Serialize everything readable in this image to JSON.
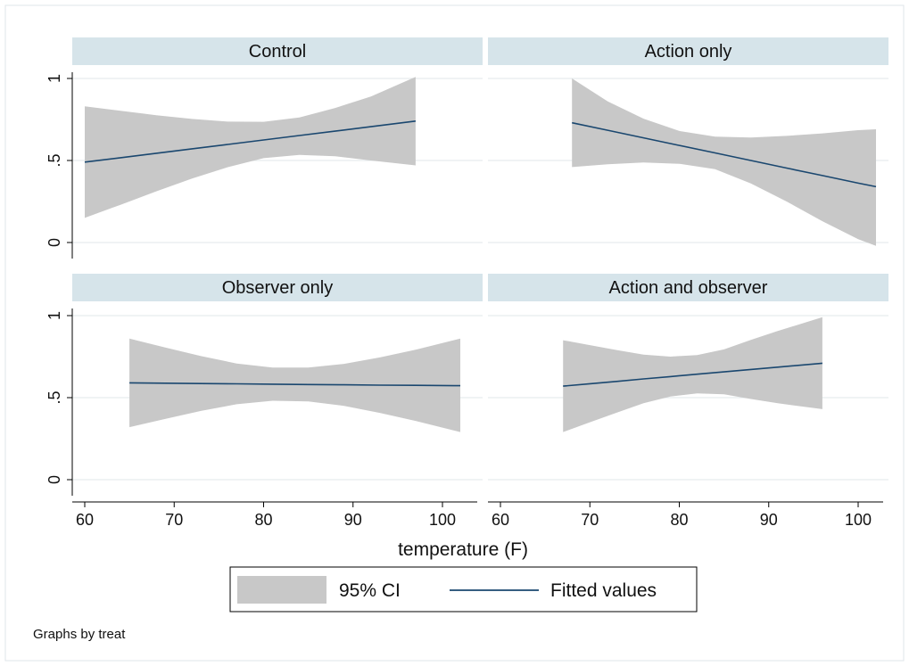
{
  "chart_data": {
    "type": "line",
    "xlabel": "temperature (F)",
    "ylabel": "",
    "note": "Graphs by treat",
    "xlim": [
      58,
      104
    ],
    "ylim": [
      -0.05,
      1.05
    ],
    "x_ticks": [
      60,
      70,
      80,
      90,
      100
    ],
    "x_tick_labels": [
      "60",
      "70",
      "80",
      "90",
      "100"
    ],
    "y_ticks": [
      0,
      0.5,
      1
    ],
    "y_tick_labels": [
      "0",
      ".5",
      "1"
    ],
    "grid": true,
    "legend": {
      "placement": "bottom",
      "entries": [
        {
          "label": "95% CI",
          "kind": "area",
          "color": "#c8c8c8"
        },
        {
          "label": "Fitted values",
          "kind": "line",
          "color": "#1a476f"
        }
      ]
    },
    "colors": {
      "ci_fill": "#c8c8c8",
      "fit_line": "#1a476f",
      "strip": "#d6e4ea"
    },
    "panels": [
      {
        "title": "Control",
        "x": [
          60,
          64,
          68,
          72,
          76,
          80,
          84,
          88,
          92,
          97
        ],
        "fitted": [
          0.49,
          0.517,
          0.544,
          0.571,
          0.598,
          0.625,
          0.652,
          0.679,
          0.706,
          0.74
        ],
        "ci_upper": [
          0.83,
          0.803,
          0.776,
          0.753,
          0.737,
          0.736,
          0.762,
          0.82,
          0.89,
          1.01
        ],
        "ci_lower": [
          0.15,
          0.23,
          0.312,
          0.39,
          0.459,
          0.514,
          0.534,
          0.526,
          0.5,
          0.47
        ]
      },
      {
        "title": "Action only",
        "x": [
          68,
          72,
          76,
          80,
          84,
          88,
          92,
          96,
          100,
          102
        ],
        "fitted": [
          0.73,
          0.684,
          0.638,
          0.592,
          0.546,
          0.5,
          0.454,
          0.408,
          0.362,
          0.34
        ],
        "ci_upper": [
          1.0,
          0.86,
          0.755,
          0.68,
          0.645,
          0.64,
          0.65,
          0.665,
          0.685,
          0.69
        ],
        "ci_lower": [
          0.46,
          0.477,
          0.488,
          0.48,
          0.447,
          0.36,
          0.25,
          0.13,
          0.02,
          -0.02
        ]
      },
      {
        "title": "Observer only",
        "x": [
          65,
          69,
          73,
          77,
          81,
          85,
          89,
          93,
          97,
          102
        ],
        "fitted": [
          0.59,
          0.588,
          0.586,
          0.584,
          0.582,
          0.58,
          0.578,
          0.576,
          0.575,
          0.573
        ],
        "ci_upper": [
          0.86,
          0.806,
          0.753,
          0.708,
          0.683,
          0.683,
          0.706,
          0.745,
          0.792,
          0.86
        ],
        "ci_lower": [
          0.32,
          0.37,
          0.419,
          0.46,
          0.481,
          0.477,
          0.45,
          0.407,
          0.358,
          0.29
        ]
      },
      {
        "title": "Action and observer",
        "x": [
          67,
          70,
          73,
          76,
          79,
          82,
          85,
          88,
          91,
          96
        ],
        "fitted": [
          0.57,
          0.585,
          0.599,
          0.614,
          0.628,
          0.643,
          0.657,
          0.672,
          0.686,
          0.71
        ],
        "ci_upper": [
          0.85,
          0.82,
          0.79,
          0.762,
          0.75,
          0.76,
          0.794,
          0.852,
          0.906,
          0.99
        ],
        "ci_lower": [
          0.29,
          0.35,
          0.408,
          0.466,
          0.507,
          0.526,
          0.52,
          0.492,
          0.466,
          0.43
        ]
      }
    ]
  }
}
